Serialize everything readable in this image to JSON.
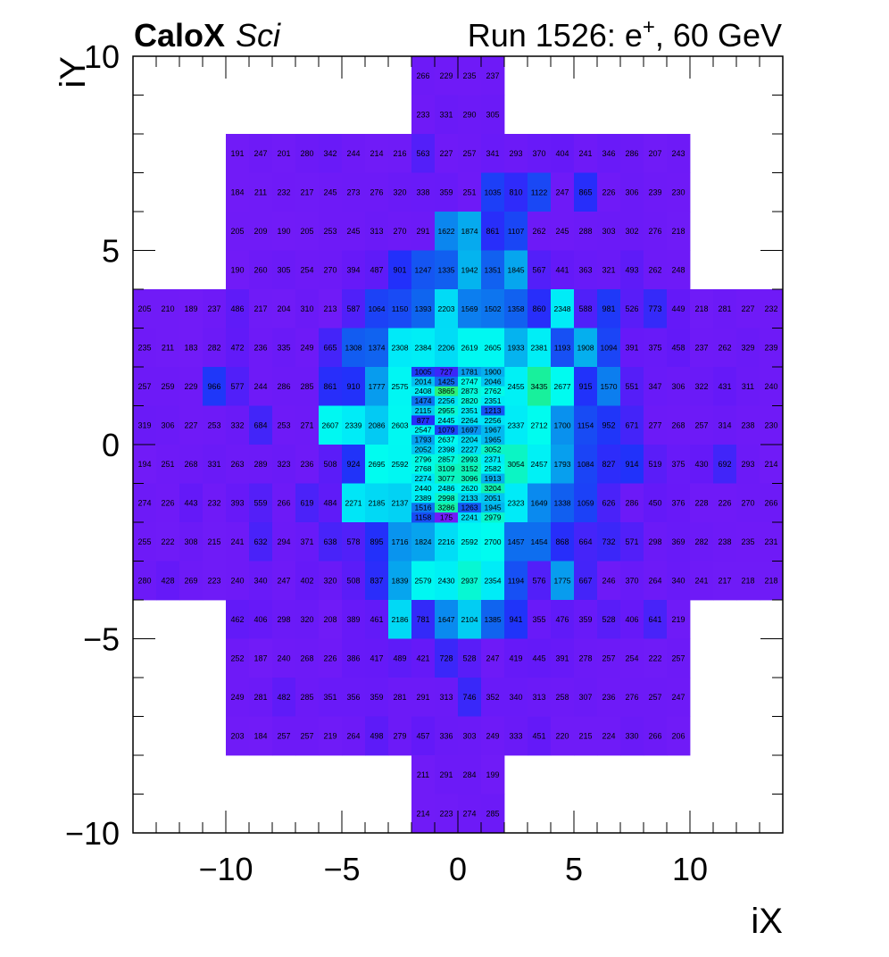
{
  "chart_data": {
    "type": "heatmap",
    "title_left_bold": "CaloX",
    "title_left_italic": "Sci",
    "title_right_prefix": "Run 1526: e",
    "title_right_sup": "+",
    "title_right_suffix": ", 60 GeV",
    "xlabel": "iX",
    "ylabel": "iY",
    "xlim": [
      -14,
      14
    ],
    "ylim": [
      -10,
      10
    ],
    "xticks": [
      -10,
      -5,
      0,
      5,
      10
    ],
    "yticks": [
      -10,
      -5,
      0,
      5,
      10
    ],
    "xtick_labels": [
      "−10",
      "−5",
      "0",
      "5",
      "10"
    ],
    "ytick_labels": [
      "−10",
      "−5",
      "0",
      "5",
      "10"
    ],
    "rows": [
      {
        "y0": 9,
        "y1": 10,
        "x0": -2,
        "w": 1,
        "v": [
          266,
          229,
          235,
          237
        ]
      },
      {
        "y0": 8,
        "y1": 9,
        "x0": -2,
        "w": 1,
        "v": [
          233,
          331,
          290,
          305
        ]
      },
      {
        "y0": 7,
        "y1": 8,
        "x0": -10,
        "w": 1,
        "v": [
          191,
          247,
          201,
          280,
          342,
          244,
          214,
          216,
          563,
          227,
          257,
          341,
          293,
          370,
          404,
          241,
          346,
          286,
          207,
          243
        ]
      },
      {
        "y0": 6,
        "y1": 7,
        "x0": -10,
        "w": 1,
        "v": [
          184,
          211,
          232,
          217,
          245,
          273,
          276,
          320,
          338,
          359,
          251,
          1035,
          810,
          1122,
          247,
          865,
          226,
          306,
          239,
          230
        ]
      },
      {
        "y0": 5,
        "y1": 6,
        "x0": -10,
        "w": 1,
        "v": [
          205,
          209,
          190,
          205,
          253,
          245,
          313,
          270,
          291,
          1622,
          1874,
          861,
          1107,
          262,
          245,
          288,
          303,
          302,
          276,
          218
        ]
      },
      {
        "y0": 4,
        "y1": 5,
        "x0": -10,
        "w": 1,
        "v": [
          190,
          260,
          305,
          254,
          270,
          394,
          487,
          901,
          1247,
          1335,
          1942,
          1351,
          1845,
          567,
          441,
          363,
          321,
          493,
          262,
          248
        ]
      },
      {
        "y0": 3,
        "y1": 4,
        "x0": -14,
        "w": 1,
        "v": [
          205,
          210,
          189,
          237,
          486,
          217,
          204,
          310,
          213,
          587,
          1064,
          1150,
          1393,
          2203,
          1569,
          1502,
          1358,
          860,
          2348,
          588,
          981,
          526,
          773,
          449,
          218,
          281,
          227,
          232
        ]
      },
      {
        "y0": 2,
        "y1": 3,
        "x0": -14,
        "w": 1,
        "v": [
          235,
          211,
          183,
          282,
          472,
          236,
          335,
          249,
          665,
          1308,
          1374,
          2308,
          2384,
          2206,
          2619,
          2605,
          1933,
          2381,
          1193,
          1908,
          1094,
          391,
          375,
          458,
          237,
          262,
          329,
          239
        ]
      },
      {
        "y0": 1,
        "y1": 2,
        "x0": -14,
        "w": 1,
        "v": [
          257,
          259,
          229,
          966,
          577,
          244,
          286,
          285,
          861,
          910,
          1777,
          2575,
          null,
          null,
          null,
          null,
          2455,
          3435,
          2677,
          915,
          1570,
          551,
          347,
          306,
          322,
          431,
          311,
          240
        ]
      },
      {
        "y0": 0,
        "y1": 1,
        "x0": -14,
        "w": 1,
        "v": [
          319,
          306,
          227,
          253,
          332,
          684,
          253,
          271,
          2607,
          2339,
          2086,
          2603,
          null,
          null,
          null,
          null,
          2337,
          2712,
          1700,
          1154,
          952,
          671,
          277,
          268,
          257,
          314,
          238,
          230
        ]
      },
      {
        "y0": -1,
        "y1": 0,
        "x0": -14,
        "w": 1,
        "v": [
          194,
          251,
          268,
          331,
          263,
          289,
          323,
          236,
          508,
          924,
          2695,
          2592,
          null,
          null,
          null,
          null,
          3054,
          2457,
          1793,
          1084,
          827,
          914,
          519,
          375,
          430,
          692,
          293,
          214
        ]
      },
      {
        "y0": -2,
        "y1": -1,
        "x0": -14,
        "w": 1,
        "v": [
          274,
          226,
          443,
          232,
          393,
          559,
          266,
          619,
          484,
          2271,
          2185,
          2137,
          null,
          null,
          null,
          null,
          2323,
          1649,
          1338,
          1059,
          626,
          286,
          450,
          376,
          228,
          226,
          270,
          266
        ]
      },
      {
        "y0": -3,
        "y1": -2,
        "x0": -14,
        "w": 1,
        "v": [
          255,
          222,
          308,
          215,
          241,
          632,
          294,
          371,
          638,
          578,
          895,
          1716,
          1824,
          2216,
          2592,
          2700,
          1457,
          1454,
          868,
          664,
          732,
          571,
          298,
          369,
          282,
          238,
          235,
          231
        ]
      },
      {
        "y0": -4,
        "y1": -3,
        "x0": -14,
        "w": 1,
        "v": [
          280,
          428,
          269,
          223,
          240,
          340,
          247,
          402,
          320,
          508,
          837,
          1839,
          2579,
          2430,
          2937,
          2354,
          1194,
          576,
          1775,
          667,
          246,
          370,
          264,
          340,
          241,
          217,
          218,
          218
        ]
      },
      {
        "y0": -5,
        "y1": -4,
        "x0": -10,
        "w": 1,
        "v": [
          462,
          406,
          298,
          320,
          208,
          389,
          461,
          2186,
          781,
          1647,
          2104,
          1385,
          941,
          355,
          476,
          359,
          528,
          406,
          641,
          219
        ]
      },
      {
        "y0": -6,
        "y1": -5,
        "x0": -10,
        "w": 1,
        "v": [
          252,
          187,
          240,
          268,
          226,
          386,
          417,
          489,
          421,
          728,
          528,
          247,
          419,
          445,
          391,
          278,
          257,
          254,
          222,
          257
        ]
      },
      {
        "y0": -7,
        "y1": -6,
        "x0": -10,
        "w": 1,
        "v": [
          249,
          281,
          482,
          285,
          351,
          356,
          359,
          281,
          291,
          313,
          746,
          352,
          340,
          313,
          258,
          307,
          236,
          276,
          257,
          247
        ]
      },
      {
        "y0": -8,
        "y1": -7,
        "x0": -10,
        "w": 1,
        "v": [
          203,
          184,
          257,
          257,
          219,
          264,
          498,
          279,
          457,
          336,
          303,
          249,
          333,
          451,
          220,
          215,
          224,
          330,
          266,
          206
        ]
      },
      {
        "y0": -9,
        "y1": -8,
        "x0": -2,
        "w": 1,
        "v": [
          211,
          291,
          284,
          199
        ]
      },
      {
        "y0": -10,
        "y1": -9,
        "x0": -2,
        "w": 1,
        "v": [
          214,
          223,
          274,
          285
        ]
      },
      {
        "y0": 1.75,
        "y1": 2,
        "x0": -2,
        "w": 1,
        "v": [
          1005,
          727,
          1781,
          1900
        ]
      },
      {
        "y0": 1.5,
        "y1": 1.75,
        "x0": -2,
        "w": 1,
        "v": [
          2014,
          1425,
          2747,
          2046
        ]
      },
      {
        "y0": 1.25,
        "y1": 1.5,
        "x0": -2,
        "w": 1,
        "v": [
          2408,
          3865,
          2873,
          2762
        ]
      },
      {
        "y0": 1,
        "y1": 1.25,
        "x0": -2,
        "w": 1,
        "v": [
          1474,
          2256,
          2820,
          2351
        ]
      },
      {
        "y0": 0.75,
        "y1": 1,
        "x0": -2,
        "w": 1,
        "v": [
          2115,
          2955,
          2351,
          1213
        ]
      },
      {
        "y0": 0.5,
        "y1": 0.75,
        "x0": -2,
        "w": 1,
        "v": [
          877,
          2445,
          2264,
          2256
        ]
      },
      {
        "y0": 0.25,
        "y1": 0.5,
        "x0": -2,
        "w": 1,
        "v": [
          2547,
          1079,
          1697,
          1967
        ]
      },
      {
        "y0": 0,
        "y1": 0.25,
        "x0": -2,
        "w": 1,
        "v": [
          1793,
          2637,
          2204,
          1965
        ]
      },
      {
        "y0": -0.25,
        "y1": 0,
        "x0": -2,
        "w": 1,
        "v": [
          2052,
          2398,
          2227,
          3052
        ]
      },
      {
        "y0": -0.5,
        "y1": -0.25,
        "x0": -2,
        "w": 1,
        "v": [
          2796,
          2857,
          2993,
          2371
        ]
      },
      {
        "y0": -0.75,
        "y1": -0.5,
        "x0": -2,
        "w": 1,
        "v": [
          2768,
          3109,
          3152,
          2582
        ]
      },
      {
        "y0": -1,
        "y1": -0.75,
        "x0": -2,
        "w": 1,
        "v": [
          2274,
          3077,
          3096,
          1913
        ]
      },
      {
        "y0": -1.25,
        "y1": -1,
        "x0": -2,
        "w": 1,
        "v": [
          2440,
          2486,
          2620,
          3204
        ]
      },
      {
        "y0": -1.5,
        "y1": -1.25,
        "x0": -2,
        "w": 1,
        "v": [
          2389,
          2998,
          2133,
          2051
        ]
      },
      {
        "y0": -1.75,
        "y1": -1.5,
        "x0": -2,
        "w": 1,
        "v": [
          1516,
          3286,
          1263,
          1945
        ]
      },
      {
        "y0": -2,
        "y1": -1.75,
        "x0": -2,
        "w": 1,
        "v": [
          1158,
          175,
          2241,
          2979
        ]
      }
    ],
    "color_scale": [
      {
        "v": 0,
        "color": "#7a1cf6"
      },
      {
        "v": 450,
        "color": "#6419f8"
      },
      {
        "v": 900,
        "color": "#2230fa"
      },
      {
        "v": 1400,
        "color": "#0f66ef"
      },
      {
        "v": 1900,
        "color": "#05aeee"
      },
      {
        "v": 2300,
        "color": "#00eaf8"
      },
      {
        "v": 2700,
        "color": "#00fcf0"
      },
      {
        "v": 3300,
        "color": "#12f0a6"
      },
      {
        "v": 4000,
        "color": "#30f070"
      }
    ],
    "grid": false,
    "legend": "none"
  }
}
